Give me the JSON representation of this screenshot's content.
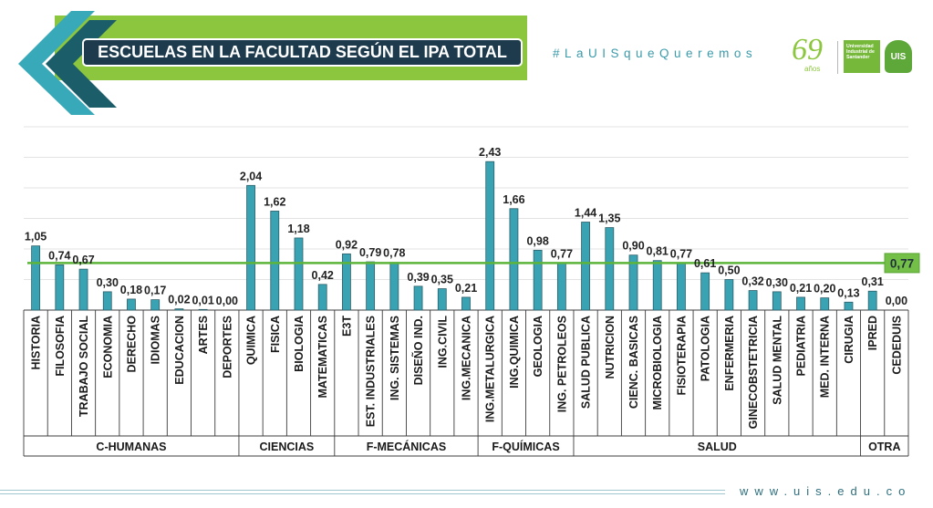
{
  "colors": {
    "brand_green": "#8cc63e",
    "brand_teal": "#38a9b9",
    "dark_teal": "#1b5e69",
    "title_background": "#1e3b4d",
    "text_teal": "#3a9aaa"
  },
  "header": {
    "hashtag": "#LaUISqueQueremos",
    "anniversary_number": "69",
    "anniversary_word": "años",
    "university_name": "Universidad Industrial de Santander",
    "logo_text": "UIS"
  },
  "chart_data": {
    "type": "bar",
    "title": "ESCUELAS EN LA FACULTAD SEGÚN EL IPA TOTAL",
    "ylim": [
      0,
      3
    ],
    "grid": true,
    "grid_step": 0.5,
    "bar_color": "#3aa3b3",
    "reference_line": {
      "value": 0.77,
      "color": "#5cb43a"
    },
    "groups": [
      {
        "name": "C-HUMANAS",
        "categories": [
          "HISTORIA",
          "FILOSOFIA",
          "TRABAJO SOCIAL",
          "ECONOMIA",
          "DERECHO",
          "IDIOMAS",
          "EDUCACION",
          "ARTES",
          "DEPORTES"
        ],
        "values": [
          1.05,
          0.74,
          0.67,
          0.3,
          0.18,
          0.17,
          0.02,
          0.01,
          0.0
        ]
      },
      {
        "name": "CIENCIAS",
        "categories": [
          "QUIMICA",
          "FISICA",
          "BIOLOGIA",
          "MATEMATICAS"
        ],
        "values": [
          2.04,
          1.62,
          1.18,
          0.42
        ]
      },
      {
        "name": "F-MECÁNICAS",
        "categories": [
          "E3T",
          "EST. INDUSTRIALES",
          "ING. SISTEMAS",
          "DISEÑO IND.",
          "ING.CIVIL",
          "ING.MECANICA"
        ],
        "values": [
          0.92,
          0.79,
          0.78,
          0.39,
          0.35,
          0.21
        ]
      },
      {
        "name": "F-QUÍMICAS",
        "categories": [
          "ING.METALURGICA",
          "ING.QUIMICA",
          "GEOLOGIA",
          "ING. PETROLEOS"
        ],
        "values": [
          2.43,
          1.66,
          0.98,
          0.77
        ]
      },
      {
        "name": "SALUD",
        "categories": [
          "SALUD PUBLICA",
          "NUTRICION",
          "CIENC. BASICAS",
          "MICROBIOLOGIA",
          "FISIOTERAPIA",
          "PATOLOGIA",
          "ENFERMERIA",
          "GINECOBSTETRICIA",
          "SALUD MENTAL",
          "PEDIATRIA",
          "MED. INTERNA",
          "CIRUGIA"
        ],
        "values": [
          1.44,
          1.35,
          0.9,
          0.81,
          0.77,
          0.61,
          0.5,
          0.32,
          0.3,
          0.21,
          0.2,
          0.13
        ]
      },
      {
        "name": "OTRA",
        "categories": [
          "IPRED",
          "CEDEDUIS"
        ],
        "values": [
          0.31,
          0.0
        ]
      }
    ]
  },
  "footer": {
    "url": "www.uis.edu.co"
  }
}
